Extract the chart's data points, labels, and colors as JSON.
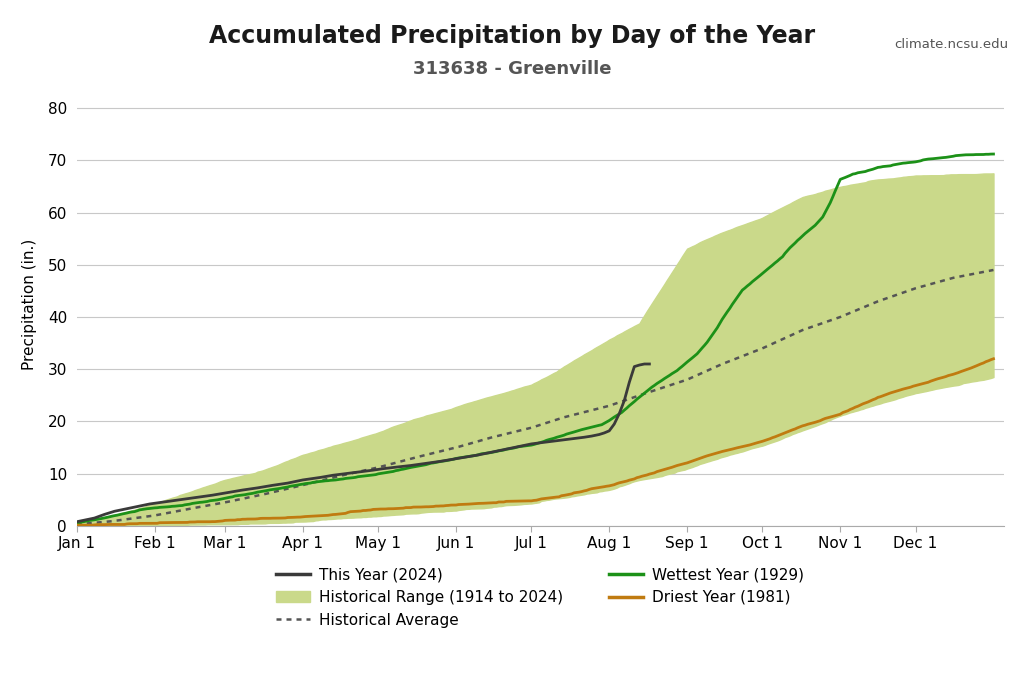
{
  "title": "Accumulated Precipitation by Day of the Year",
  "subtitle": "313638 - Greenville",
  "watermark": "climate.ncsu.edu",
  "ylabel": "Precipitation (in.)",
  "ylim": [
    0,
    85
  ],
  "yticks": [
    0,
    10,
    20,
    30,
    40,
    50,
    60,
    70,
    80
  ],
  "bg_color": "#ffffff",
  "grid_color": "#c8c8c8",
  "title_fontsize": 17,
  "subtitle_fontsize": 13,
  "axis_fontsize": 11,
  "legend_fontsize": 11,
  "colors": {
    "this_year": "#3a3a3a",
    "wettest": "#1c9118",
    "driest": "#c07b10",
    "hist_range_fill": "#cad98a",
    "hist_avg": "#555555"
  },
  "month_labels": [
    "Jan 1",
    "Feb 1",
    "Mar 1",
    "Apr 1",
    "May 1",
    "Jun 1",
    "Jul 1",
    "Aug 1",
    "Sep 1",
    "Oct 1",
    "Nov 1",
    "Dec 1"
  ],
  "month_days": [
    1,
    32,
    60,
    91,
    121,
    152,
    182,
    213,
    244,
    274,
    305,
    335
  ]
}
